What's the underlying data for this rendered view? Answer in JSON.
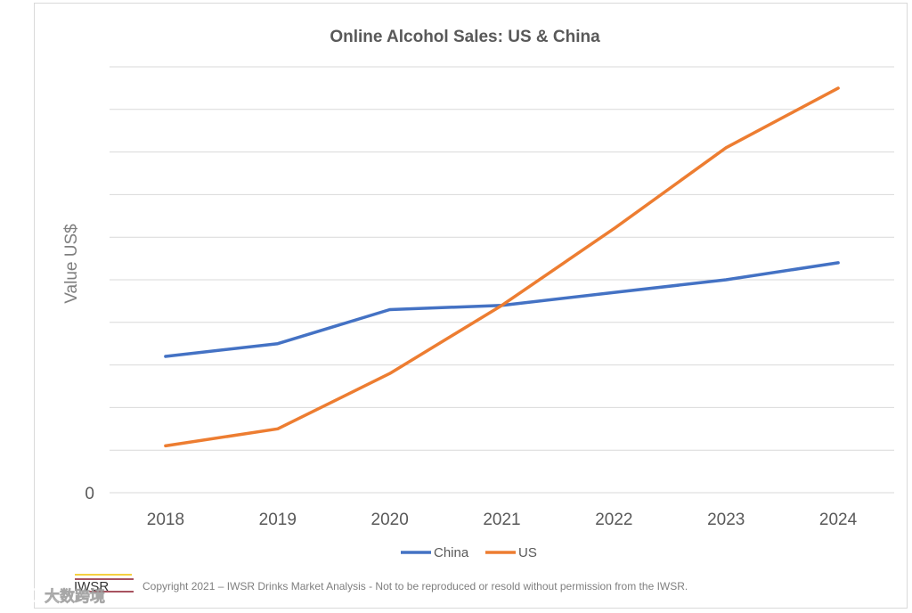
{
  "chart_data": {
    "type": "line",
    "title": "Online Alcohol Sales: US & China",
    "xlabel": "",
    "ylabel": "Value US$",
    "categories": [
      "2018",
      "2019",
      "2020",
      "2021",
      "2022",
      "2023",
      "2024"
    ],
    "ylim": [
      0,
      10
    ],
    "y_tick_labels": [
      "0"
    ],
    "grid": true,
    "legend_position": "bottom",
    "series": [
      {
        "name": "China",
        "color": "#4472c4",
        "values": [
          3.2,
          3.5,
          4.3,
          4.4,
          4.7,
          5.0,
          5.4
        ]
      },
      {
        "name": "US",
        "color": "#ed7d31",
        "values": [
          1.1,
          1.5,
          2.8,
          4.4,
          6.2,
          8.1,
          9.5
        ]
      }
    ]
  },
  "footer": {
    "logo_text": "IWSR",
    "copyright": "Copyright 2021 – IWSR Drinks Market Analysis - Not to be reproduced or resold without permission from the IWSR."
  },
  "watermark": {
    "text": "大数跨境"
  }
}
